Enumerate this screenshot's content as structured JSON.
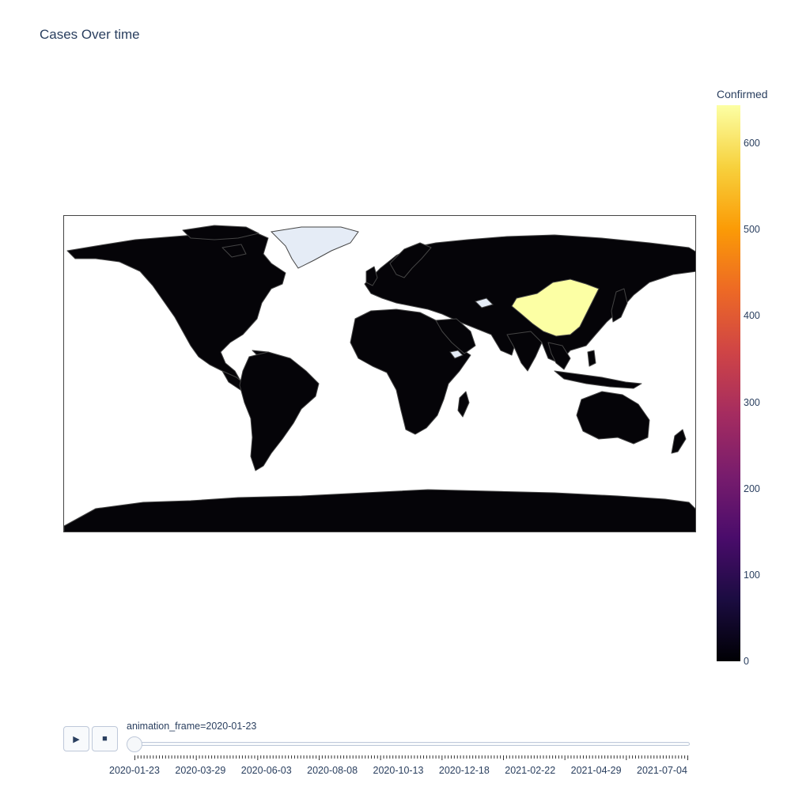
{
  "title": "Cases Over time",
  "colorbar": {
    "title": "Confirmed",
    "ticks": [
      "0",
      "100",
      "200",
      "300",
      "400",
      "500",
      "600"
    ],
    "max": 644,
    "colorscale": [
      "#000004",
      "#1b0c41",
      "#4a0c6b",
      "#781c6d",
      "#a52c60",
      "#cf4446",
      "#ed6925",
      "#fb9b06",
      "#f7d13d",
      "#fcffa4"
    ]
  },
  "map": {
    "land_color": "#050408",
    "border_color": "#444444",
    "no_data_color": "#e5ecf6",
    "highlight_color": "#fcffa4",
    "regions": [
      {
        "name": "China",
        "value": 644
      }
    ]
  },
  "animation": {
    "play_icon": "play-icon",
    "stop_icon": "stop-icon",
    "current_label": "animation_frame=2020-01-23",
    "current_value": "2020-01-23",
    "tick_labels": [
      "2020-01-23",
      "2020-03-29",
      "2020-06-03",
      "2020-08-08",
      "2020-10-13",
      "2020-12-18",
      "2021-02-22",
      "2021-04-29",
      "2021-07-04"
    ]
  }
}
